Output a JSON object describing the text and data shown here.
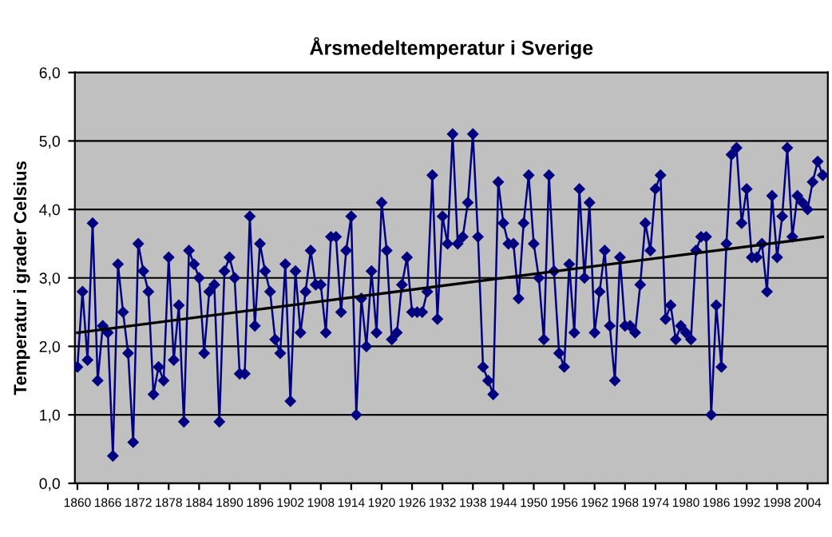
{
  "chart_data": {
    "type": "line",
    "title": "Årsmedeltemperatur i Sverige",
    "ylabel": "Temperatur i grader Celsius",
    "series": [
      {
        "color": "#000080",
        "marker": "diamond",
        "x": [
          1860,
          1861,
          1862,
          1863,
          1864,
          1865,
          1866,
          1867,
          1868,
          1869,
          1870,
          1871,
          1872,
          1873,
          1874,
          1875,
          1876,
          1877,
          1878,
          1879,
          1880,
          1881,
          1882,
          1883,
          1884,
          1885,
          1886,
          1887,
          1888,
          1889,
          1890,
          1891,
          1892,
          1893,
          1894,
          1895,
          1896,
          1897,
          1898,
          1899,
          1900,
          1901,
          1902,
          1903,
          1904,
          1905,
          1906,
          1907,
          1908,
          1909,
          1910,
          1911,
          1912,
          1913,
          1914,
          1915,
          1916,
          1917,
          1918,
          1919,
          1920,
          1921,
          1922,
          1923,
          1924,
          1925,
          1926,
          1927,
          1928,
          1929,
          1930,
          1931,
          1932,
          1933,
          1934,
          1935,
          1936,
          1937,
          1938,
          1939,
          1940,
          1941,
          1942,
          1943,
          1944,
          1945,
          1946,
          1947,
          1948,
          1949,
          1950,
          1951,
          1952,
          1953,
          1954,
          1955,
          1956,
          1957,
          1958,
          1959,
          1960,
          1961,
          1962,
          1963,
          1964,
          1965,
          1966,
          1967,
          1968,
          1969,
          1970,
          1971,
          1972,
          1973,
          1974,
          1975,
          1976,
          1977,
          1978,
          1979,
          1980,
          1981,
          1982,
          1983,
          1984,
          1985,
          1986,
          1987,
          1988,
          1989,
          1990,
          1991,
          1992,
          1993,
          1994,
          1995,
          1996,
          1997,
          1998,
          1999,
          2000,
          2001,
          2002,
          2003,
          2004,
          2005,
          2006,
          2007
        ],
        "values": [
          1.7,
          2.8,
          1.8,
          3.8,
          1.5,
          2.3,
          2.2,
          0.4,
          3.2,
          2.5,
          1.9,
          0.6,
          3.5,
          3.1,
          2.8,
          1.3,
          1.7,
          1.5,
          3.3,
          1.8,
          2.6,
          0.9,
          3.4,
          3.2,
          3.0,
          1.9,
          2.8,
          2.9,
          0.9,
          3.1,
          3.3,
          3.0,
          1.6,
          1.6,
          3.9,
          2.3,
          3.5,
          3.1,
          2.8,
          2.1,
          1.9,
          3.2,
          1.2,
          3.1,
          2.2,
          2.8,
          3.4,
          2.9,
          2.9,
          2.2,
          3.6,
          3.6,
          2.5,
          3.4,
          3.9,
          1.0,
          2.7,
          2.0,
          3.1,
          2.2,
          4.1,
          3.4,
          2.1,
          2.2,
          2.9,
          3.3,
          2.5,
          2.5,
          2.5,
          2.8,
          4.5,
          2.4,
          3.9,
          3.5,
          5.1,
          3.5,
          3.6,
          4.1,
          5.1,
          3.6,
          1.7,
          1.5,
          1.3,
          4.4,
          3.8,
          3.5,
          3.5,
          2.7,
          3.8,
          4.5,
          3.5,
          3.0,
          2.1,
          4.5,
          3.1,
          1.9,
          1.7,
          3.2,
          2.2,
          4.3,
          3.0,
          4.1,
          2.2,
          2.8,
          3.4,
          2.3,
          1.5,
          3.3,
          2.3,
          2.3,
          2.2,
          2.9,
          3.8,
          3.4,
          4.3,
          4.5,
          2.4,
          2.6,
          2.1,
          2.3,
          2.2,
          2.1,
          3.4,
          3.6,
          3.6,
          1.0,
          2.6,
          1.7,
          3.5,
          4.8,
          4.9,
          3.8,
          4.3,
          3.3,
          3.3,
          3.5,
          2.8,
          4.2,
          3.3,
          3.9,
          4.9,
          3.6,
          4.2,
          4.1,
          4.0,
          4.4,
          4.7,
          4.5
        ]
      },
      {
        "type": "line",
        "color": "#000000",
        "marker": "none",
        "x": [
          1860,
          2007
        ],
        "values": [
          2.2,
          3.6
        ]
      }
    ],
    "xlim": [
      1859.5,
      2008
    ],
    "xticks": [
      1860,
      1866,
      1872,
      1878,
      1884,
      1890,
      1896,
      1902,
      1908,
      1914,
      1920,
      1926,
      1932,
      1938,
      1944,
      1950,
      1956,
      1962,
      1968,
      1974,
      1980,
      1986,
      1992,
      1998,
      2004
    ],
    "ylim": [
      0,
      6
    ],
    "yticks": [
      {
        "value": 0,
        "label": "0,0"
      },
      {
        "value": 1,
        "label": "1,0"
      },
      {
        "value": 2,
        "label": "2,0"
      },
      {
        "value": 3,
        "label": "3,0"
      },
      {
        "value": 4,
        "label": "4,0"
      },
      {
        "value": 5,
        "label": "5,0"
      },
      {
        "value": 6,
        "label": "6,0"
      }
    ],
    "grid": "y"
  }
}
